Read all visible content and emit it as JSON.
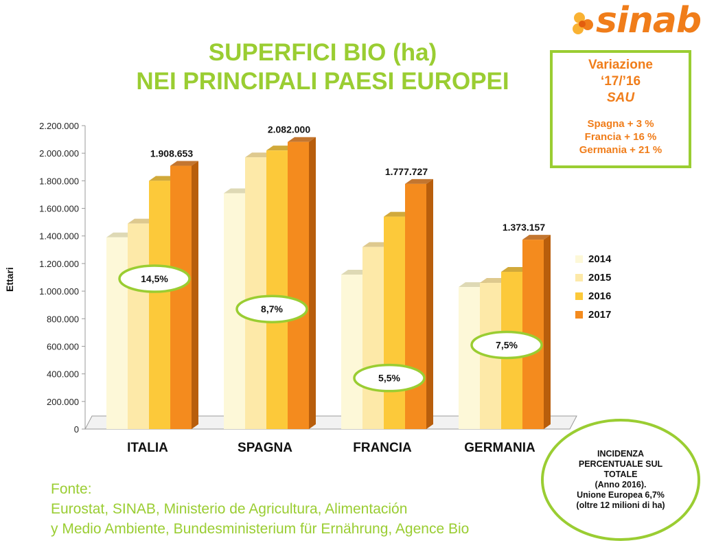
{
  "title_line1": "SUPERFICI BIO (ha)",
  "title_line2": "NEI PRINCIPALI PAESI EUROPEI",
  "logo_text": "sinab",
  "variation_box": {
    "line1": "Variazione",
    "line2": "‘17/’16",
    "line3": "SAU",
    "items": [
      "Spagna + 3 %",
      "Francia + 16 %",
      "Germania + 21 %"
    ]
  },
  "incidenza_lines": [
    "INCIDENZA PERCENTUALE SUL TOTALE",
    "(Anno 2016).",
    "Unione Europea 6,7% (oltre 12 milioni di ha)"
  ],
  "source_lines": [
    "Fonte:",
    "Eurostat, SINAB, Ministerio de Agricultura, Alimentación",
    "y Medio Ambiente, Bundesministerium für Ernährung, Agence Bio"
  ],
  "colors": {
    "accent_green": "#9acd32",
    "accent_orange": "#f07d1a"
  },
  "chart_data": {
    "type": "bar",
    "ylabel": "Ettari",
    "ylim": [
      0,
      2200000
    ],
    "yticks": [
      0,
      200000,
      400000,
      600000,
      800000,
      1000000,
      1200000,
      1400000,
      1600000,
      1800000,
      2000000,
      2200000
    ],
    "ytick_labels": [
      "0",
      "200.000",
      "400.000",
      "600.000",
      "800.000",
      "1.000.000",
      "1.200.000",
      "1.400.000",
      "1.600.000",
      "1.800.000",
      "2.000.000",
      "2.200.000"
    ],
    "categories": [
      "ITALIA",
      "SPAGNA",
      "FRANCIA",
      "GERMANIA"
    ],
    "series": [
      {
        "name": "2014",
        "color": "#fdf8d8",
        "side": "#d8d2a8",
        "values": [
          1390000,
          1710000,
          1120000,
          1030000
        ]
      },
      {
        "name": "2015",
        "color": "#fde9a8",
        "side": "#d8c07a",
        "values": [
          1490000,
          1970000,
          1320000,
          1060000
        ]
      },
      {
        "name": "2016",
        "color": "#fcc93a",
        "side": "#c99a18",
        "values": [
          1800000,
          2020000,
          1540000,
          1140000
        ]
      },
      {
        "name": "2017",
        "color": "#f48b1e",
        "side": "#b85e0c",
        "values": [
          1908653,
          2082000,
          1777727,
          1373157
        ]
      }
    ],
    "value_labels": [
      "1.908.653",
      "2.082.000",
      "1.777.727",
      "1.373.157"
    ],
    "share_labels": [
      {
        "category": "ITALIA",
        "text": "14,5%",
        "y": 1090000
      },
      {
        "category": "SPAGNA",
        "text": "8,7%",
        "y": 870000
      },
      {
        "category": "FRANCIA",
        "text": "5,5%",
        "y": 370000
      },
      {
        "category": "GERMANIA",
        "text": "7,5%",
        "y": 610000
      }
    ],
    "legend_position": "right",
    "grid": false
  }
}
